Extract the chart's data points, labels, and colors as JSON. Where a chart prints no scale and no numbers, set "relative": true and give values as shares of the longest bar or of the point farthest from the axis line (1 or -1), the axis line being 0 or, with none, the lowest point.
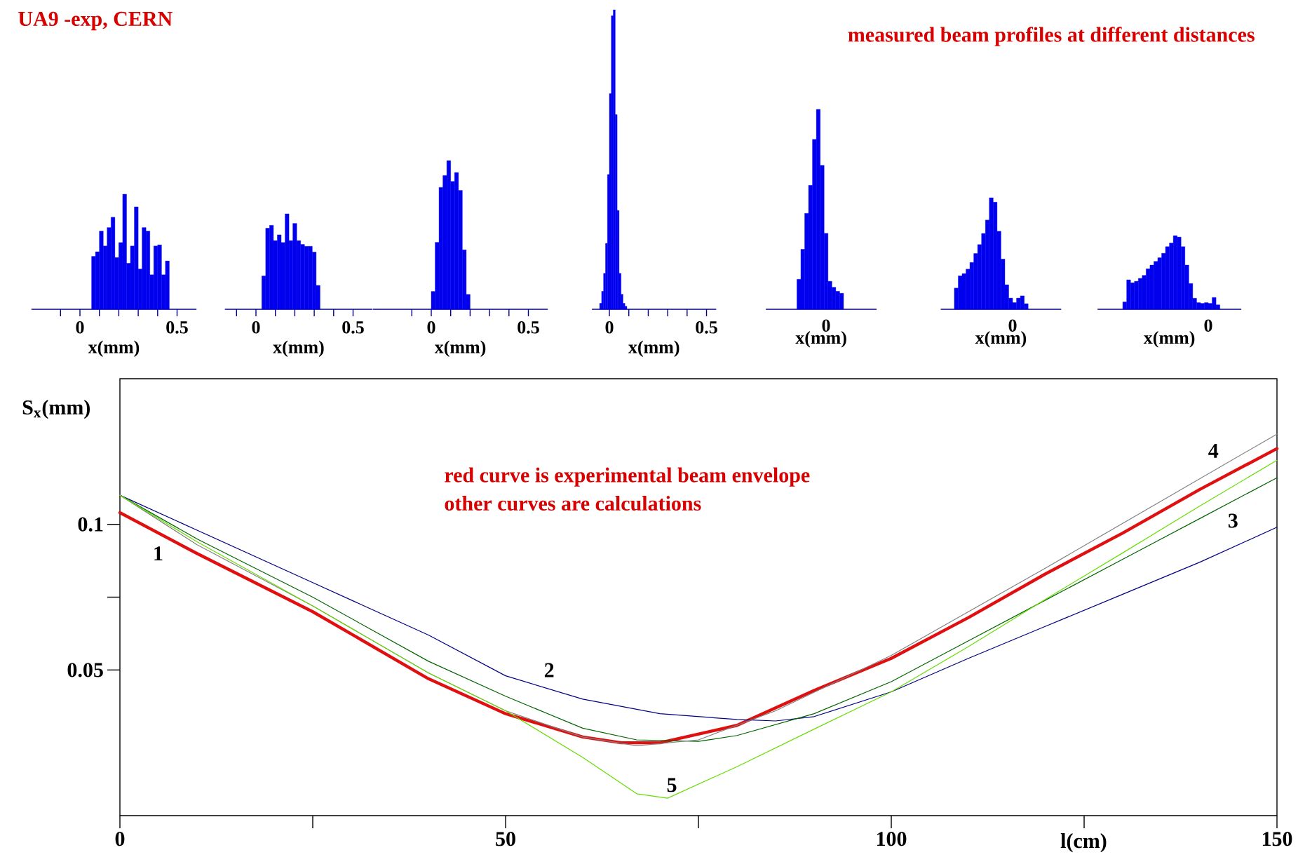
{
  "chart_data": [
    {
      "type": "bar",
      "relative": true,
      "color": "#0000ee",
      "xlabel": "x(mm)",
      "xlim": [
        -0.25,
        0.6
      ],
      "xticks": [
        {
          "value": -0.1,
          "label": null
        },
        0,
        {
          "value": 0.1,
          "label": null
        },
        {
          "value": 0.2,
          "label": null
        },
        {
          "value": 0.3,
          "label": null
        },
        {
          "value": 0.4,
          "label": null
        },
        0.5
      ],
      "x": [
        0.07,
        0.09,
        0.11,
        0.13,
        0.15,
        0.17,
        0.19,
        0.21,
        0.23,
        0.25,
        0.27,
        0.29,
        0.31,
        0.33,
        0.35,
        0.37,
        0.39,
        0.41,
        0.43,
        0.45
      ],
      "values": [
        0.46,
        0.5,
        0.68,
        0.55,
        0.71,
        0.8,
        0.45,
        0.58,
        1,
        0.4,
        0.55,
        0.89,
        0.35,
        0.71,
        0.68,
        0.3,
        0.55,
        0.56,
        0.3,
        0.42
      ],
      "annotations": [
        "UA9 -exp, CERN",
        "measured beam profiles at different distances"
      ]
    },
    {
      "type": "bar",
      "relative": true,
      "color": "#0000ee",
      "xlabel": "x(mm)",
      "xlim": [
        -0.16,
        0.6
      ],
      "xticks": [
        {
          "value": -0.1,
          "label": null
        },
        0,
        {
          "value": 0.1,
          "label": null
        },
        {
          "value": 0.2,
          "label": null
        },
        {
          "value": 0.3,
          "label": null
        },
        {
          "value": 0.4,
          "label": null
        },
        0.5
      ],
      "x": [
        0.04,
        0.06,
        0.08,
        0.1,
        0.12,
        0.14,
        0.16,
        0.18,
        0.2,
        0.22,
        0.24,
        0.26,
        0.28,
        0.3,
        0.32
      ],
      "values": [
        0.35,
        0.85,
        0.88,
        0.72,
        0.78,
        0.7,
        1,
        0.72,
        0.9,
        0.72,
        0.68,
        0.66,
        0.66,
        0.6,
        0.25
      ]
    },
    {
      "type": "bar",
      "relative": true,
      "color": "#0000ee",
      "xlabel": "x(mm)",
      "xlim": [
        -0.3,
        0.6
      ],
      "xticks": [
        {
          "value": -0.1,
          "label": null
        },
        0,
        {
          "value": 0.1,
          "label": null
        },
        {
          "value": 0.2,
          "label": null
        },
        {
          "value": 0.3,
          "label": null
        },
        {
          "value": 0.4,
          "label": null
        },
        0.5
      ],
      "x": [
        0.01,
        0.03,
        0.05,
        0.07,
        0.09,
        0.11,
        0.13,
        0.15,
        0.17,
        0.19
      ],
      "values": [
        0.12,
        0.45,
        0.82,
        0.9,
        1,
        0.86,
        0.92,
        0.8,
        0.4,
        0.1
      ]
    },
    {
      "type": "bar",
      "relative": true,
      "color": "#0000ee",
      "xlabel": "x(mm)",
      "xlim": [
        -0.09,
        0.55
      ],
      "xticks": [
        0,
        {
          "value": 0.1,
          "label": null
        },
        {
          "value": 0.2,
          "label": null
        },
        {
          "value": 0.3,
          "label": null
        },
        {
          "value": 0.4,
          "label": null
        },
        0.5
      ],
      "x": [
        -0.045,
        -0.035,
        -0.025,
        -0.015,
        -0.005,
        0.005,
        0.015,
        0.025,
        0.035,
        0.045,
        0.055,
        0.065,
        0.075,
        0.085
      ],
      "values": [
        0.02,
        0.06,
        0.12,
        0.22,
        0.45,
        0.72,
        0.98,
        1,
        0.65,
        0.33,
        0.12,
        0.05,
        0.02,
        0.01
      ]
    },
    {
      "type": "bar",
      "relative": true,
      "color": "#0000ee",
      "xlabel": "x(mm)",
      "annotations": [
        "0"
      ],
      "categories": [
        null,
        null,
        null,
        null,
        null,
        null,
        null,
        null,
        null,
        null,
        null,
        null
      ],
      "values": [
        0.15,
        0.3,
        0.48,
        0.62,
        0.85,
        1,
        0.72,
        0.38,
        0.14,
        0.11,
        0.09,
        0.08
      ]
    },
    {
      "type": "bar",
      "relative": true,
      "color": "#0000ee",
      "xlabel": "x(mm)",
      "annotations": [
        "0"
      ],
      "categories": [
        null,
        null,
        null,
        null,
        null,
        null,
        null,
        null,
        null,
        null,
        null,
        null,
        null,
        null,
        null,
        null,
        null,
        null,
        null
      ],
      "values": [
        0.19,
        0.3,
        0.32,
        0.36,
        0.42,
        0.5,
        0.58,
        0.68,
        0.8,
        1,
        0.96,
        0.7,
        0.45,
        0.22,
        0.1,
        0.06,
        0.1,
        0.12,
        0.05
      ]
    },
    {
      "type": "bar",
      "relative": true,
      "color": "#0000ee",
      "xlabel": "x(mm)",
      "annotations": [
        "0"
      ],
      "categories": [
        null,
        null,
        null,
        null,
        null,
        null,
        null,
        null,
        null,
        null,
        null,
        null,
        null,
        null,
        null,
        null,
        null,
        null,
        null,
        null,
        null,
        null,
        null,
        null,
        null
      ],
      "values": [
        0.1,
        0.4,
        0.36,
        0.38,
        0.42,
        0.46,
        0.55,
        0.6,
        0.65,
        0.7,
        0.76,
        0.85,
        0.9,
        1,
        0.98,
        0.85,
        0.6,
        0.35,
        0.15,
        0.09,
        0.08,
        0.09,
        0.08,
        0.16,
        0.06
      ]
    },
    {
      "type": "line",
      "xlabel": "l(cm)",
      "ylabel": "S$_{x}$(mm)",
      "xlim": [
        0,
        150
      ],
      "ylim": [
        0,
        0.15
      ],
      "xticks": [
        0,
        50,
        100,
        150
      ],
      "yticks": [
        0.05,
        0.1
      ],
      "series": [
        {
          "name": "1",
          "color": "#e01010",
          "x": [
            0,
            10,
            25,
            40,
            50,
            60,
            65,
            70,
            80,
            90,
            100,
            110,
            120,
            130,
            140,
            150
          ],
          "values": [
            0.104,
            0.09,
            0.07,
            0.047,
            0.035,
            0.027,
            0.025,
            0.025,
            0.031,
            0.043,
            0.054,
            0.068,
            0.083,
            0.097,
            0.112,
            0.126
          ]
        },
        {
          "name": "2",
          "color": "#000080",
          "x": [
            0,
            10,
            25,
            40,
            50,
            60,
            70,
            80,
            85,
            90,
            100,
            110,
            120,
            130,
            140,
            150
          ],
          "values": [
            0.11,
            0.098,
            0.08,
            0.062,
            0.048,
            0.04,
            0.035,
            0.033,
            0.0325,
            0.034,
            0.0425,
            0.054,
            0.065,
            0.076,
            0.087,
            0.099
          ]
        },
        {
          "name": "3",
          "color": "#006400",
          "x": [
            0,
            10,
            25,
            40,
            50,
            60,
            67,
            75,
            80,
            90,
            100,
            110,
            120,
            130,
            140,
            150
          ],
          "values": [
            0.11,
            0.095,
            0.075,
            0.053,
            0.041,
            0.03,
            0.026,
            0.0255,
            0.0275,
            0.035,
            0.046,
            0.06,
            0.074,
            0.088,
            0.102,
            0.116
          ]
        },
        {
          "name": "4",
          "color": "#808080",
          "x": [
            0,
            10,
            25,
            40,
            50,
            60,
            67,
            75,
            85,
            100,
            120,
            150
          ],
          "values": [
            0.11,
            0.093,
            0.072,
            0.049,
            0.036,
            0.027,
            0.024,
            0.026,
            0.036,
            0.055,
            0.085,
            0.131
          ]
        },
        {
          "name": "5",
          "color": "#66dd00",
          "x": [
            0,
            10,
            25,
            40,
            50,
            60,
            67,
            71,
            80,
            90,
            100,
            110,
            120,
            130,
            140,
            150
          ],
          "values": [
            0.11,
            0.094,
            0.072,
            0.049,
            0.036,
            0.02,
            0.0075,
            0.006,
            0.0168,
            0.0297,
            0.0425,
            0.058,
            0.0743,
            0.0902,
            0.1063,
            0.122
          ]
        }
      ],
      "annotations": [
        "red curve is  experimental beam envelope",
        "other curves are calculations"
      ]
    }
  ]
}
